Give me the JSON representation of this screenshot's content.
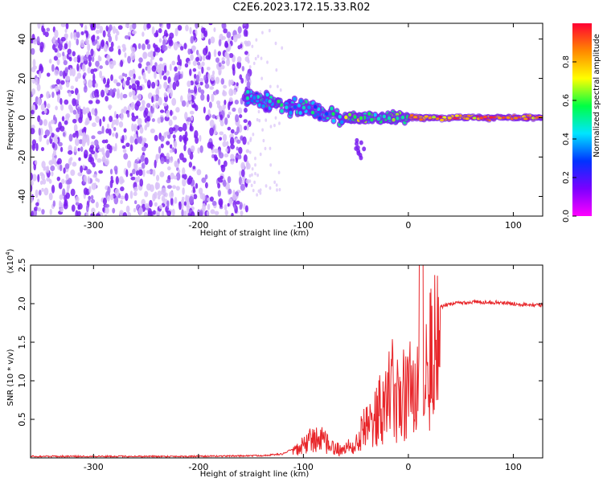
{
  "title": "C2E6.2023.172.15.33.R02",
  "colors": {
    "snr_line": "#e8262a",
    "scatter_core": "#7a1ff0",
    "noise_light": "#d9c2f8",
    "colorbar": [
      "#ff00ff",
      "#7a00ff",
      "#0033ff",
      "#00e5ff",
      "#00ff44",
      "#ffff00",
      "#ff8800",
      "#ff0033"
    ]
  },
  "chart_data": [
    {
      "type": "heatmap",
      "xlabel": "Height of straight line (km)",
      "ylabel": "Frequency (Hz)",
      "xlim": [
        -360,
        128
      ],
      "ylim": [
        -50,
        48
      ],
      "xticks": [
        -300,
        -200,
        -100,
        0,
        100
      ],
      "yticks": [
        -40,
        -20,
        0,
        20,
        40
      ],
      "colorbar": {
        "label": "Normalized spectral amplitude",
        "range": [
          0,
          1
        ],
        "ticks": [
          "0.0",
          "0.2",
          "0.4",
          "0.6",
          "0.8"
        ],
        "tick_values": [
          0.0,
          0.2,
          0.4,
          0.6,
          0.8
        ]
      },
      "regions": [
        {
          "x_range": [
            -360,
            -155
          ],
          "freq_range": [
            -50,
            48
          ],
          "amplitude": 0.1
        },
        {
          "x_range": [
            -155,
            -60
          ],
          "freq_center": [
            10,
            0
          ],
          "freq_spread": 15,
          "amplitude": 0.4
        },
        {
          "x_range": [
            -60,
            0
          ],
          "freq_center": [
            0,
            0
          ],
          "freq_spread": 8,
          "amplitude": 0.55
        },
        {
          "x_range": [
            0,
            128
          ],
          "freq_center": [
            0,
            0
          ],
          "freq_spread": 4,
          "amplitude": 0.85
        }
      ]
    },
    {
      "type": "line",
      "xlabel": "Height of straight line (km)",
      "ylabel": "SNR (10 * v/v)",
      "scale_label": "(x10",
      "scale_exponent": "4",
      "scale_suffix": ")",
      "xlim": [
        -360,
        128
      ],
      "ylim": [
        0,
        2.5
      ],
      "xticks": [
        -300,
        -200,
        -100,
        0,
        100
      ],
      "yticks": [
        0.5,
        1.0,
        1.5,
        2.0,
        2.5
      ],
      "ytick_labels": [
        "0.5",
        "1.0",
        "1.5",
        "2.0",
        "2.5"
      ],
      "series": [
        {
          "x": [
            -360,
            -200,
            -140,
            -120,
            -105,
            -95,
            -85,
            -75,
            -65,
            -55,
            -45,
            -35,
            -25,
            -15,
            -10,
            0,
            10,
            20,
            30,
            40,
            60,
            80,
            100,
            128
          ],
          "values": [
            0.02,
            0.02,
            0.03,
            0.05,
            0.15,
            0.3,
            0.35,
            0.2,
            0.15,
            0.2,
            0.5,
            0.6,
            0.9,
            1.2,
            1.0,
            1.2,
            1.3,
            1.8,
            1.95,
            2.0,
            2.02,
            2.02,
            2.0,
            1.98
          ]
        }
      ]
    }
  ]
}
